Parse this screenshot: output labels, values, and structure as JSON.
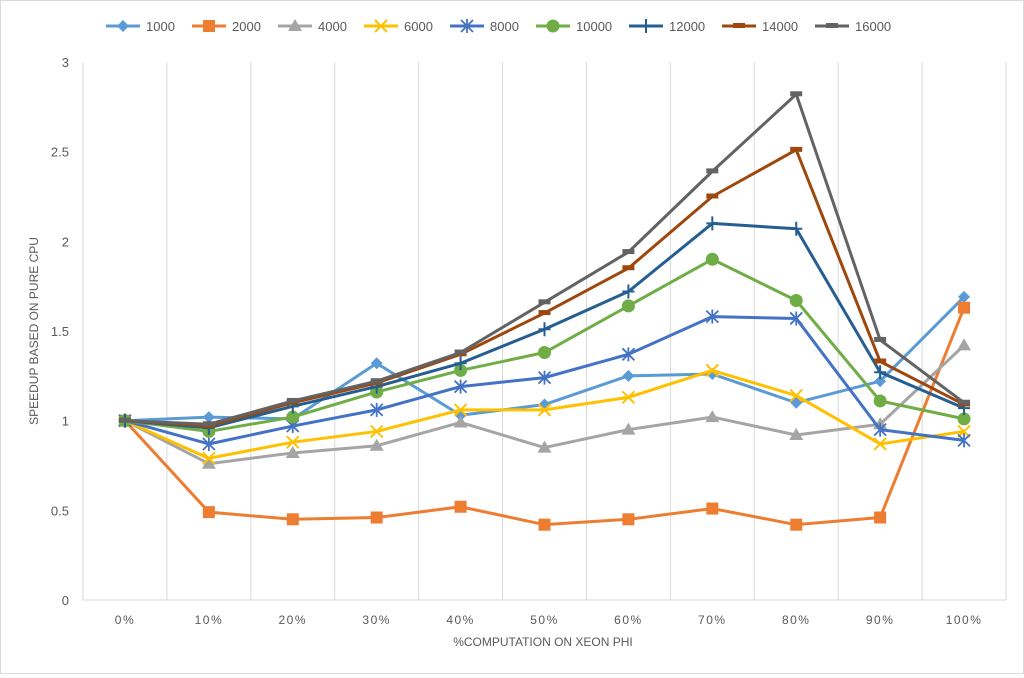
{
  "chart_data": {
    "type": "line",
    "title": "",
    "xlabel": "%COMPUTATION ON XEON PHI",
    "ylabel": "SPEEDUP BASED ON PURE CPU",
    "categories": [
      "0%",
      "10%",
      "20%",
      "30%",
      "40%",
      "50%",
      "60%",
      "70%",
      "80%",
      "90%",
      "100%"
    ],
    "ylim": [
      0,
      3
    ],
    "yticks": [
      0,
      0.5,
      1,
      1.5,
      2,
      2.5,
      3
    ],
    "grid": "vertical",
    "legend": "top",
    "series": [
      {
        "name": "1000",
        "color": "#5B9BD5",
        "marker": "diamond",
        "values": [
          1.0,
          1.02,
          1.01,
          1.32,
          1.03,
          1.09,
          1.25,
          1.26,
          1.1,
          1.22,
          1.69
        ]
      },
      {
        "name": "2000",
        "color": "#ED7D31",
        "marker": "square",
        "values": [
          1.0,
          0.49,
          0.45,
          0.46,
          0.52,
          0.42,
          0.45,
          0.51,
          0.42,
          0.46,
          1.63
        ]
      },
      {
        "name": "4000",
        "color": "#A5A5A5",
        "marker": "triangle",
        "values": [
          1.0,
          0.76,
          0.82,
          0.86,
          0.99,
          0.85,
          0.95,
          1.02,
          0.92,
          0.98,
          1.42
        ]
      },
      {
        "name": "6000",
        "color": "#FFC000",
        "marker": "x",
        "values": [
          1.0,
          0.79,
          0.88,
          0.94,
          1.06,
          1.06,
          1.13,
          1.28,
          1.14,
          0.87,
          0.94
        ]
      },
      {
        "name": "8000",
        "color": "#4472C4",
        "marker": "star",
        "values": [
          1.0,
          0.87,
          0.97,
          1.06,
          1.19,
          1.24,
          1.37,
          1.58,
          1.57,
          0.95,
          0.89
        ]
      },
      {
        "name": "10000",
        "color": "#70AD47",
        "marker": "circle",
        "values": [
          1.0,
          0.94,
          1.02,
          1.16,
          1.28,
          1.38,
          1.64,
          1.9,
          1.67,
          1.11,
          1.01
        ]
      },
      {
        "name": "12000",
        "color": "#255E91",
        "marker": "plus",
        "values": [
          1.0,
          0.96,
          1.08,
          1.19,
          1.32,
          1.51,
          1.72,
          2.1,
          2.07,
          1.27,
          1.07
        ]
      },
      {
        "name": "14000",
        "color": "#9E480E",
        "marker": "dash",
        "values": [
          1.0,
          0.97,
          1.1,
          1.21,
          1.37,
          1.6,
          1.85,
          2.25,
          2.51,
          1.33,
          1.09
        ]
      },
      {
        "name": "16000",
        "color": "#636363",
        "marker": "dash",
        "values": [
          1.0,
          0.98,
          1.11,
          1.22,
          1.38,
          1.66,
          1.94,
          2.39,
          2.82,
          1.45,
          1.1
        ]
      }
    ]
  }
}
